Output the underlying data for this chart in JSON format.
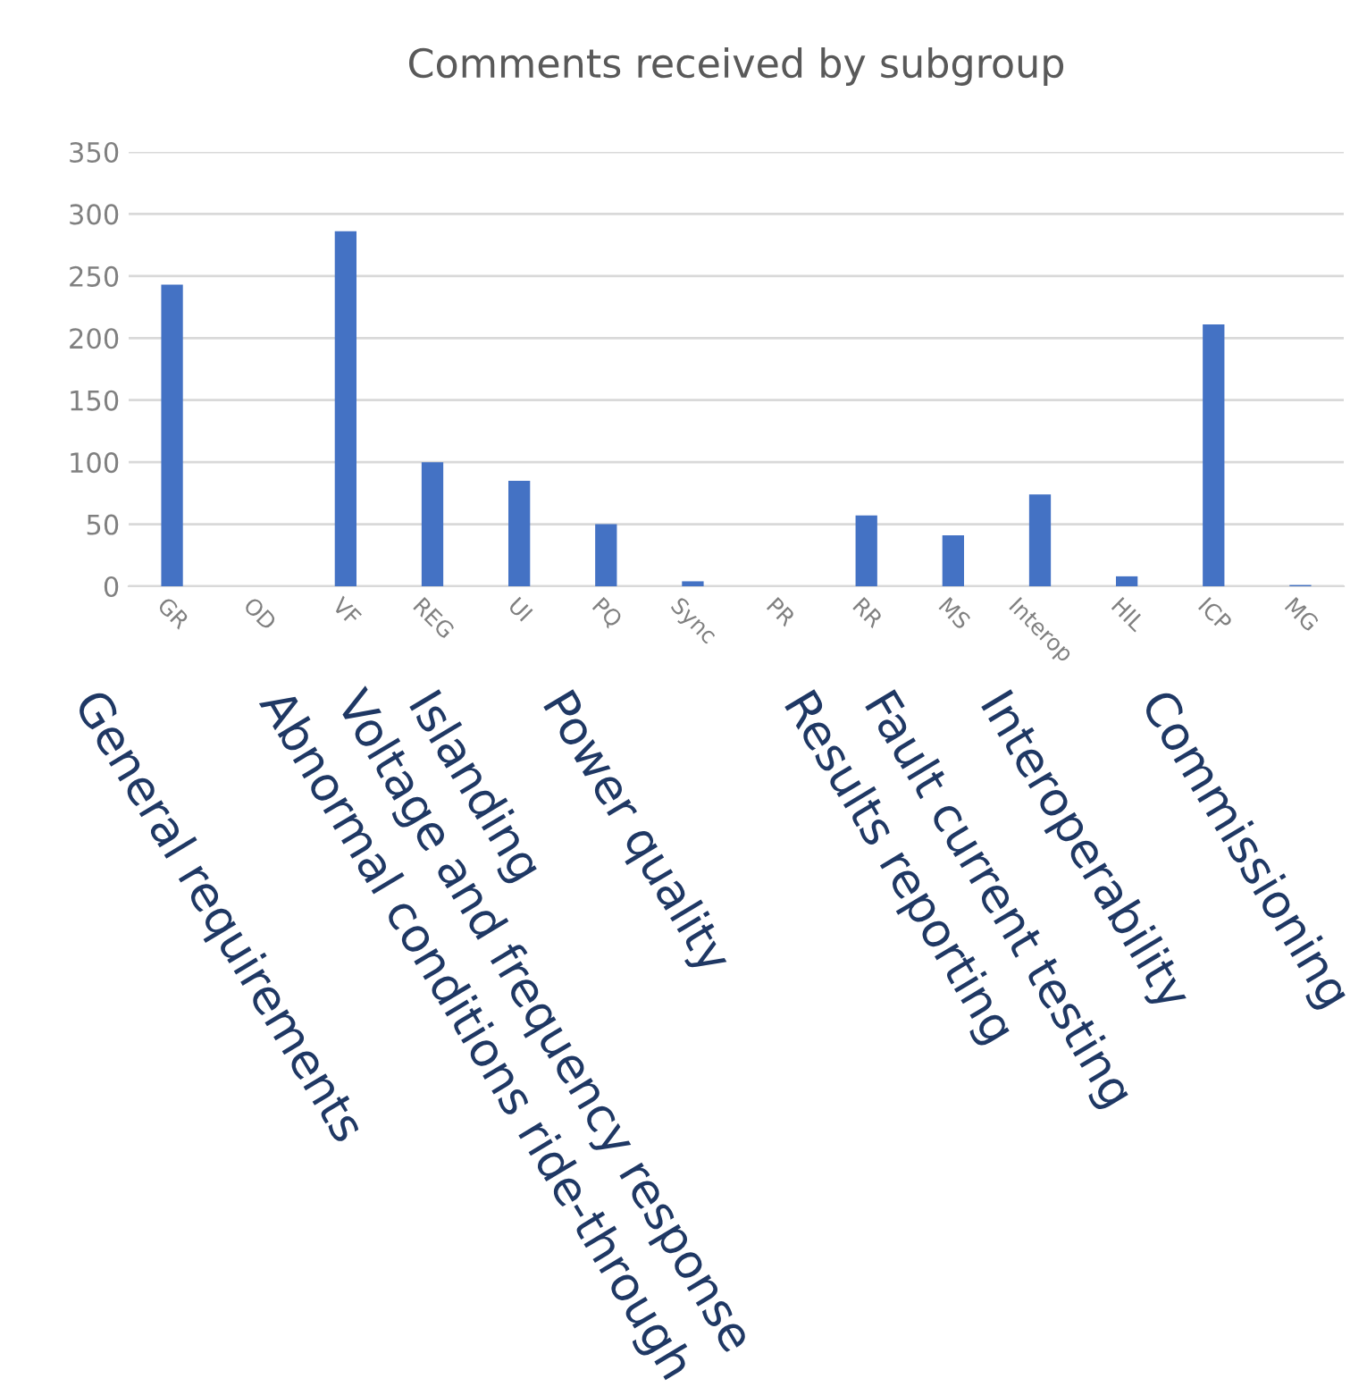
{
  "chart_data": {
    "type": "bar",
    "title": "Comments received by subgroup",
    "categories": [
      "GR",
      "OD",
      "VF",
      "REG",
      "UI",
      "PQ",
      "Sync",
      "PR",
      "RR",
      "MS",
      "Interop",
      "HIL",
      "ICP",
      "MG"
    ],
    "values": [
      243,
      0,
      286,
      100,
      85,
      50,
      4,
      0,
      57,
      41,
      74,
      8,
      211,
      1
    ],
    "color": "#4472c4",
    "ylim": [
      0,
      350
    ],
    "yticks": [
      0,
      50,
      100,
      150,
      200,
      250,
      300,
      350
    ],
    "grid": "y",
    "legend": false,
    "annotations": [
      "General requirements",
      "Abnormal conditions ride-through",
      "Voltage and frequency response",
      "Islanding",
      "Power quality",
      "Results reporting",
      "Fault current testing",
      "Interoperability",
      "Commissioning"
    ]
  }
}
